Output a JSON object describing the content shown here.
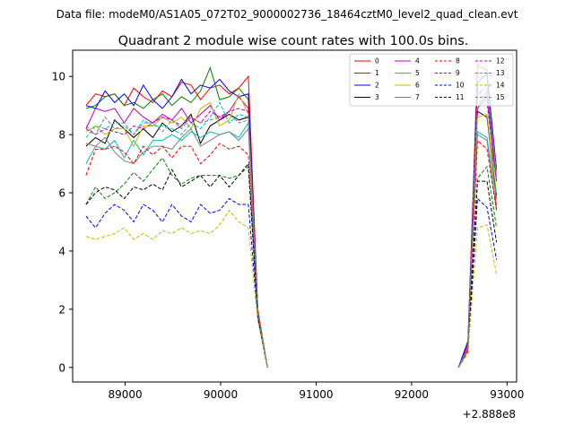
{
  "header": {
    "data_file_label": "Data file: modeM0/AS1A05_072T02_9000002736_18464cztM0_level2_quad_clean.evt"
  },
  "chart_data": {
    "type": "line",
    "title": "Quadrant 2 module wise count rates with 100.0s bins.",
    "xlabel": "",
    "ylabel": "",
    "x_offset_label": "+2.888e8",
    "xlim": [
      88450,
      93100
    ],
    "ylim": [
      -0.5,
      10.9
    ],
    "x_ticks": [
      89000,
      90000,
      91000,
      92000,
      93000
    ],
    "x_tick_labels": [
      "89000",
      "90000",
      "91000",
      "92000",
      "93000"
    ],
    "y_ticks": [
      0,
      2,
      4,
      6,
      8,
      10
    ],
    "y_tick_labels": [
      "0",
      "2",
      "4",
      "6",
      "8",
      "10"
    ],
    "grid": false,
    "legend": {
      "placement": "top-right",
      "columns": 4
    },
    "segments": [
      {
        "x": [
          88590,
          88690,
          88790,
          88890,
          88990,
          89090,
          89190,
          89290,
          89390,
          89490,
          89590,
          89690,
          89790,
          89890,
          89990,
          90090,
          90190,
          90290,
          90390,
          90490
        ]
      },
      {
        "x": [
          92490,
          92590,
          92690,
          92790,
          92890
        ]
      }
    ],
    "series": [
      {
        "name": "0",
        "color": "#ff0000",
        "dash": "solid",
        "segments": [
          [
            9.0,
            9.4,
            9.3,
            9.4,
            9.0,
            9.6,
            9.3,
            9.1,
            9.5,
            9.3,
            9.8,
            9.7,
            9.2,
            9.6,
            9.7,
            9.4,
            9.6,
            10.0,
            2.0,
            0.0
          ],
          [
            0.0,
            0.8,
            10.4,
            10.2,
            5.4
          ]
        ]
      },
      {
        "name": "1",
        "color": "#008000",
        "dash": "solid",
        "segments": [
          [
            8.9,
            9.0,
            9.3,
            9.4,
            9.0,
            9.1,
            8.9,
            9.2,
            9.4,
            9.0,
            9.3,
            9.1,
            9.5,
            10.3,
            9.2,
            9.3,
            9.6,
            9.2,
            1.9,
            0.0
          ],
          [
            0.0,
            0.7,
            8.9,
            9.5,
            6.8
          ]
        ]
      },
      {
        "name": "2",
        "color": "#0000ff",
        "dash": "solid",
        "segments": [
          [
            9.0,
            8.9,
            9.5,
            9.1,
            9.4,
            9.0,
            9.7,
            9.2,
            8.9,
            9.3,
            9.9,
            9.4,
            9.7,
            9.6,
            9.9,
            9.5,
            9.3,
            9.4,
            1.9,
            0.0
          ],
          [
            0.0,
            0.9,
            9.8,
            10.1,
            6.8
          ]
        ]
      },
      {
        "name": "3",
        "color": "#000000",
        "dash": "solid",
        "segments": [
          [
            7.6,
            7.9,
            7.7,
            8.5,
            8.2,
            7.9,
            8.2,
            7.9,
            8.4,
            8.1,
            8.3,
            8.7,
            7.7,
            8.3,
            8.5,
            8.7,
            8.5,
            8.6,
            1.9,
            0.0
          ],
          [
            0.0,
            0.6,
            8.8,
            8.6,
            5.9
          ]
        ]
      },
      {
        "name": "4",
        "color": "#bf00bf",
        "dash": "solid",
        "segments": [
          [
            8.2,
            8.9,
            8.8,
            8.9,
            8.4,
            8.9,
            8.6,
            8.4,
            8.7,
            8.5,
            8.9,
            8.4,
            8.7,
            9.0,
            8.5,
            8.8,
            9.3,
            8.9,
            1.9,
            0.0
          ],
          [
            0.0,
            0.7,
            8.9,
            9.3,
            6.4
          ]
        ]
      },
      {
        "name": "5",
        "color": "#00bfbf",
        "dash": "solid",
        "segments": [
          [
            7.0,
            7.6,
            7.5,
            7.8,
            7.2,
            7.8,
            7.3,
            7.8,
            7.8,
            8.0,
            7.8,
            8.1,
            7.9,
            8.1,
            8.0,
            8.1,
            7.9,
            8.4,
            1.8,
            0.0
          ],
          [
            0.0,
            0.6,
            8.1,
            7.9,
            5.8
          ]
        ]
      },
      {
        "name": "6",
        "color": "#bfbf00",
        "dash": "solid",
        "segments": [
          [
            8.1,
            8.3,
            8.0,
            8.2,
            8.2,
            7.6,
            8.3,
            8.3,
            8.6,
            8.4,
            8.6,
            8.2,
            8.9,
            9.1,
            8.3,
            8.5,
            9.4,
            8.7,
            1.8,
            0.0
          ],
          [
            0.0,
            0.6,
            8.6,
            8.7,
            6.0
          ]
        ]
      },
      {
        "name": "7",
        "color": "#808080",
        "dash": "solid",
        "segments": [
          [
            7.7,
            7.6,
            7.9,
            7.4,
            7.1,
            7.0,
            7.4,
            7.6,
            7.6,
            7.5,
            7.9,
            8.2,
            7.6,
            7.8,
            8.0,
            8.1,
            7.8,
            8.2,
            1.8,
            0.0
          ],
          [
            0.0,
            0.6,
            8.0,
            7.8,
            5.4
          ]
        ]
      },
      {
        "name": "8",
        "color": "#ff0000",
        "dash": "dashed",
        "segments": [
          [
            6.6,
            7.5,
            7.5,
            7.6,
            7.4,
            7.0,
            7.6,
            7.3,
            7.6,
            7.2,
            7.6,
            7.6,
            7.0,
            7.3,
            7.7,
            7.5,
            7.6,
            7.3,
            1.8,
            0.0
          ],
          [
            0.0,
            0.6,
            7.8,
            7.5,
            5.4
          ]
        ]
      },
      {
        "name": "9",
        "color": "#008000",
        "dash": "dashed",
        "segments": [
          [
            5.6,
            6.2,
            5.8,
            6.0,
            6.3,
            6.7,
            6.4,
            6.8,
            7.2,
            6.6,
            6.3,
            6.5,
            6.6,
            6.6,
            6.6,
            6.5,
            6.6,
            6.9,
            1.7,
            0.0
          ],
          [
            0.0,
            0.5,
            6.5,
            6.9,
            4.8
          ]
        ]
      },
      {
        "name": "10",
        "color": "#0000ff",
        "dash": "dashed",
        "segments": [
          [
            5.2,
            4.8,
            5.3,
            5.6,
            5.4,
            5.0,
            5.6,
            5.4,
            5.0,
            5.6,
            5.2,
            5.0,
            5.6,
            5.3,
            5.4,
            5.8,
            5.6,
            5.6,
            1.7,
            0.0
          ],
          [
            0.0,
            0.5,
            5.8,
            5.5,
            3.7
          ]
        ]
      },
      {
        "name": "11",
        "color": "#000000",
        "dash": "dashed",
        "segments": [
          [
            5.6,
            6.0,
            6.2,
            6.1,
            5.8,
            6.2,
            6.1,
            6.3,
            6.1,
            6.8,
            6.2,
            6.4,
            6.6,
            6.2,
            6.6,
            6.2,
            6.6,
            7.0,
            1.7,
            0.0
          ],
          [
            0.0,
            0.5,
            6.4,
            6.4,
            4.3
          ]
        ]
      },
      {
        "name": "12",
        "color": "#bf00bf",
        "dash": "dashed",
        "segments": [
          [
            8.2,
            8.0,
            8.2,
            8.1,
            8.0,
            8.3,
            8.2,
            8.4,
            8.6,
            8.5,
            8.3,
            8.6,
            8.4,
            8.8,
            8.6,
            8.8,
            8.9,
            8.8,
            1.9,
            0.0
          ],
          [
            0.0,
            0.7,
            9.6,
            9.1,
            6.4
          ]
        ]
      },
      {
        "name": "13",
        "color": "#00bfbf",
        "dash": "dashed",
        "segments": [
          [
            7.9,
            8.3,
            8.2,
            8.4,
            8.4,
            8.0,
            8.5,
            8.3,
            8.3,
            8.2,
            8.0,
            8.4,
            8.2,
            8.6,
            9.1,
            8.4,
            8.7,
            8.6,
            1.9,
            0.0
          ],
          [
            0.0,
            0.7,
            9.4,
            9.6,
            6.7
          ]
        ]
      },
      {
        "name": "14",
        "color": "#bfbf00",
        "dash": "dashed",
        "segments": [
          [
            4.5,
            4.4,
            4.5,
            4.6,
            4.8,
            4.4,
            4.6,
            4.4,
            4.7,
            4.6,
            4.8,
            4.6,
            4.7,
            4.6,
            4.9,
            5.4,
            5.0,
            4.8,
            1.6,
            0.0
          ],
          [
            0.0,
            0.5,
            4.8,
            4.9,
            3.2
          ]
        ]
      },
      {
        "name": "15",
        "color": "#808080",
        "dash": "dashed",
        "segments": [
          [
            8.3,
            8.0,
            8.6,
            8.2,
            8.3,
            8.0,
            8.4,
            8.4,
            8.1,
            8.5,
            8.2,
            8.6,
            8.4,
            8.5,
            8.6,
            8.7,
            8.4,
            8.5,
            1.9,
            0.0
          ],
          [
            0.0,
            0.7,
            9.3,
            9.8,
            6.6
          ]
        ]
      }
    ]
  }
}
